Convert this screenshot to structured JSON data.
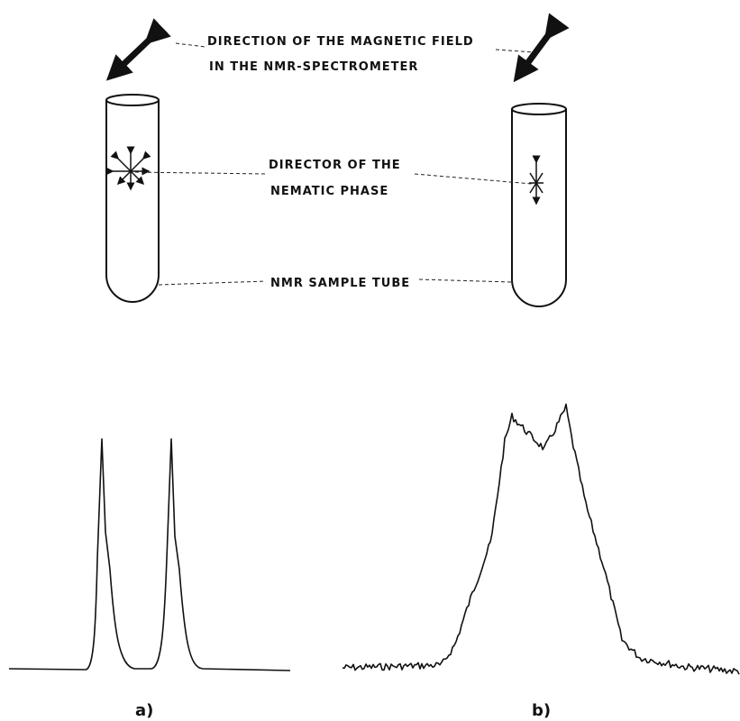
{
  "labels": {
    "field": [
      "DIRECTION OF THE MAGNETIC FIELD",
      "IN THE NMR-SPECTROMETER"
    ],
    "director": [
      "DIRECTOR OF THE",
      "NEMATIC PHASE"
    ],
    "tube": "NMR SAMPLE TUBE"
  },
  "panels": [
    "a)",
    "b)"
  ]
}
